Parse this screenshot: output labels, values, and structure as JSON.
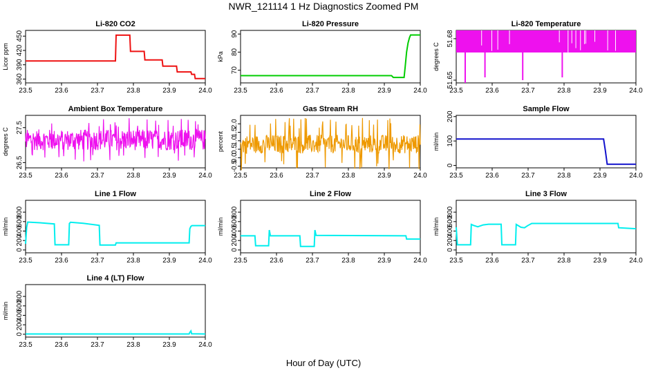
{
  "title": "NWR_121114  1 Hz Diagnostics Zoomed PM",
  "xlabel": "Hour of Day (UTC)",
  "chart_data": [
    {
      "type": "line",
      "title": "Li-820 CO2",
      "ylabel": "Licor ppm",
      "color": "#ee1111",
      "xlim": [
        23.5,
        24.0
      ],
      "ylim": [
        352,
        462
      ],
      "yticks": [
        360,
        390,
        420,
        450
      ],
      "xticks": [
        23.5,
        23.6,
        23.7,
        23.8,
        23.9,
        24.0
      ],
      "series": [
        {
          "x": [
            23.5,
            23.75,
            23.752,
            23.79,
            23.792,
            23.83,
            23.832,
            23.88,
            23.882,
            23.92,
            23.922,
            23.96,
            23.962,
            23.97,
            23.972,
            24.0
          ],
          "y": [
            398,
            398,
            452,
            452,
            418,
            418,
            400,
            400,
            387,
            387,
            375,
            375,
            370,
            370,
            361,
            361
          ]
        }
      ]
    },
    {
      "type": "line",
      "title": "Li-820 Pressure",
      "ylabel": "kPa",
      "color": "#00cc00",
      "xlim": [
        23.5,
        24.0
      ],
      "ylim": [
        63,
        92
      ],
      "yticks": [
        70,
        80,
        90
      ],
      "xticks": [
        23.5,
        23.6,
        23.7,
        23.8,
        23.9,
        24.0
      ],
      "series": [
        {
          "x": [
            23.5,
            23.92,
            23.925,
            23.955,
            23.958,
            23.962,
            23.966,
            23.97,
            23.973,
            24.0
          ],
          "y": [
            67,
            67,
            66,
            66,
            72,
            80,
            85,
            88,
            89.5,
            89.5
          ]
        }
      ]
    },
    {
      "type": "line",
      "title": "Li-820 Temperature",
      "ylabel": "degrees C",
      "color": "#ee11ee",
      "xlim": [
        23.5,
        24.0
      ],
      "ylim": [
        51.648,
        51.686
      ],
      "yticks": [
        51.65,
        51.68
      ],
      "ytick_labels": [
        "51.65",
        "51.68"
      ],
      "xticks": [
        23.5,
        23.6,
        23.7,
        23.8,
        23.9,
        24.0
      ],
      "band": {
        "x": [
          23.5,
          24.0
        ],
        "y": [
          51.67,
          51.686
        ]
      },
      "spikes": [
        {
          "x": 23.525,
          "y": 51.648
        },
        {
          "x": 23.58,
          "y": 51.652
        },
        {
          "x": 23.685,
          "y": 51.65
        },
        {
          "x": 23.795,
          "y": 51.652
        }
      ]
    },
    {
      "type": "line",
      "title": "Ambient Box Temperature",
      "ylabel": "degrees C",
      "color": "#ee11ee",
      "xlim": [
        23.5,
        24.0
      ],
      "ylim": [
        26.35,
        27.85
      ],
      "yticks": [
        26.5,
        27.5
      ],
      "ytick_labels": [
        "26.5",
        "27.5"
      ],
      "xticks": [
        23.5,
        23.6,
        23.7,
        23.8,
        23.9,
        24.0
      ],
      "noise": {
        "center": 27.15,
        "amplitude": 0.3,
        "spike": 0.62
      }
    },
    {
      "type": "line",
      "title": "Gas Stream RH",
      "ylabel": "percent",
      "color": "#ee9900",
      "xlim": [
        23.5,
        24.0
      ],
      "ylim": [
        -0.6,
        2.5
      ],
      "yticks": [
        -0.5,
        0.0,
        0.5,
        1.0,
        1.5,
        2.0
      ],
      "ytick_labels": [
        "-0.5",
        "0.0",
        "0.5",
        "1.0",
        "1.5",
        "2.0"
      ],
      "xticks": [
        23.5,
        23.6,
        23.7,
        23.8,
        23.9,
        24.0
      ],
      "noise": {
        "center": 0.8,
        "amplitude": 0.55,
        "spike": 1.55
      }
    },
    {
      "type": "line",
      "title": "Sample Flow",
      "ylabel": "ml/min",
      "color": "#1111cc",
      "xlim": [
        23.5,
        24.0
      ],
      "ylim": [
        -10,
        205
      ],
      "yticks": [
        0,
        100,
        200
      ],
      "xticks": [
        23.5,
        23.6,
        23.7,
        23.8,
        23.9,
        24.0
      ],
      "series": [
        {
          "x": [
            23.5,
            23.91,
            23.915,
            23.92,
            24.0
          ],
          "y": [
            108,
            108,
            60,
            5,
            5
          ]
        }
      ]
    },
    {
      "type": "line",
      "title": "Line 1 Flow",
      "ylabel": "ml/min",
      "color": "#00eeee",
      "xlim": [
        23.5,
        24.0
      ],
      "ylim": [
        -60,
        1050
      ],
      "yticks": [
        0,
        200,
        400,
        600,
        800
      ],
      "xticks": [
        23.5,
        23.6,
        23.7,
        23.8,
        23.9,
        24.0
      ],
      "series": [
        {
          "x": [
            23.5,
            23.503,
            23.506,
            23.54,
            23.58,
            23.582,
            23.62,
            23.622,
            23.625,
            23.66,
            23.705,
            23.707,
            23.75,
            23.752,
            23.955,
            23.957,
            23.96,
            23.963,
            24.0
          ],
          "y": [
            130,
            480,
            590,
            575,
            550,
            110,
            110,
            560,
            585,
            565,
            520,
            105,
            105,
            150,
            150,
            450,
            500,
            515,
            515
          ]
        }
      ]
    },
    {
      "type": "line",
      "title": "Line 2 Flow",
      "ylabel": "ml/min",
      "color": "#00eeee",
      "xlim": [
        23.5,
        24.0
      ],
      "ylim": [
        -60,
        1050
      ],
      "yticks": [
        0,
        200,
        400,
        600,
        800
      ],
      "xticks": [
        23.5,
        23.6,
        23.7,
        23.8,
        23.9,
        24.0
      ],
      "series": [
        {
          "x": [
            23.5,
            23.54,
            23.542,
            23.578,
            23.58,
            23.583,
            23.665,
            23.667,
            23.705,
            23.707,
            23.71,
            23.96,
            23.962,
            24.0
          ],
          "y": [
            300,
            300,
            90,
            90,
            420,
            300,
            300,
            75,
            75,
            420,
            310,
            300,
            230,
            230
          ]
        }
      ]
    },
    {
      "type": "line",
      "title": "Line 3 Flow",
      "ylabel": "ml/min",
      "color": "#00eeee",
      "xlim": [
        23.5,
        24.0
      ],
      "ylim": [
        -60,
        1050
      ],
      "yticks": [
        0,
        200,
        400,
        600,
        800
      ],
      "xticks": [
        23.5,
        23.6,
        23.7,
        23.8,
        23.9,
        24.0
      ],
      "series": [
        {
          "x": [
            23.5,
            23.503,
            23.54,
            23.542,
            23.548,
            23.56,
            23.575,
            23.59,
            23.625,
            23.627,
            23.665,
            23.667,
            23.68,
            23.69,
            23.7,
            23.71,
            23.95,
            23.952,
            24.0
          ],
          "y": [
            480,
            110,
            110,
            540,
            520,
            490,
            530,
            545,
            545,
            110,
            110,
            540,
            480,
            470,
            520,
            560,
            560,
            470,
            450
          ]
        }
      ]
    },
    {
      "type": "line",
      "title": "Line 4 (LT) Flow",
      "ylabel": "ml/min",
      "color": "#00eeee",
      "xlim": [
        23.5,
        24.0
      ],
      "ylim": [
        -60,
        1050
      ],
      "yticks": [
        0,
        200,
        400,
        600,
        800
      ],
      "xticks": [
        23.5,
        23.6,
        23.7,
        23.8,
        23.9,
        24.0
      ],
      "series": [
        {
          "x": [
            23.5,
            23.955,
            23.957,
            23.96,
            23.962,
            24.0
          ],
          "y": [
            5,
            5,
            40,
            70,
            10,
            5
          ]
        }
      ]
    }
  ]
}
